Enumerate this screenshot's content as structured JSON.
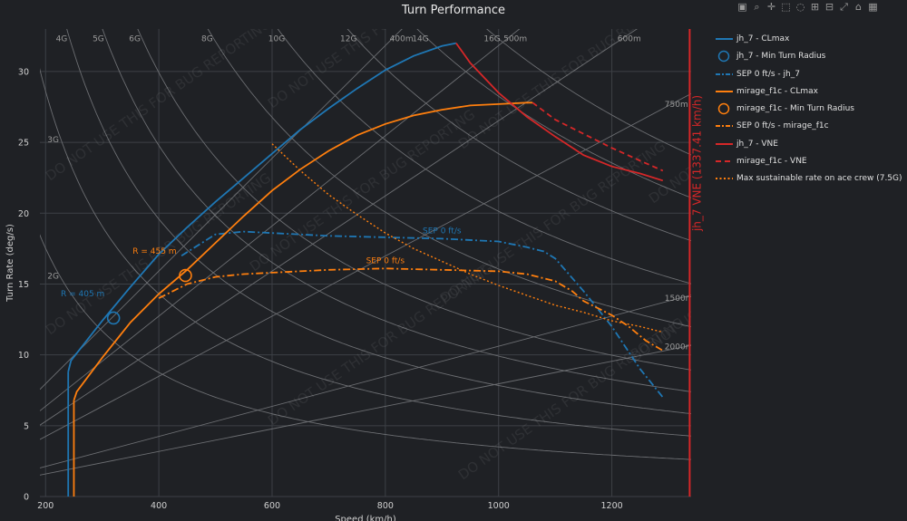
{
  "chart_data": {
    "type": "line",
    "title": "Turn Performance",
    "xlabel": "Speed (km/h)",
    "ylabel": "Turn Rate (deg/s)",
    "xlim": [
      190,
      1340
    ],
    "ylim": [
      0,
      33
    ],
    "x_ticks": [
      200,
      400,
      600,
      800,
      1000,
      1200
    ],
    "y_ticks": [
      0,
      5,
      10,
      15,
      20,
      25,
      30
    ],
    "grid": true,
    "legend_position": "right",
    "watermark": "DO NOT USE THIS FOR BUG REPORTING",
    "g_lines": [
      {
        "label": "2G",
        "g": 2
      },
      {
        "label": "3G",
        "g": 3
      },
      {
        "label": "4G",
        "g": 4
      },
      {
        "label": "5G",
        "g": 5
      },
      {
        "label": "6G",
        "g": 6
      },
      {
        "label": "8G",
        "g": 8
      },
      {
        "label": "10G",
        "g": 10
      },
      {
        "label": "12G",
        "g": 12
      },
      {
        "label": "14G",
        "g": 14
      },
      {
        "label": "16G",
        "g": 16
      }
    ],
    "radius_lines": [
      {
        "label": "400m",
        "r": 400
      },
      {
        "label": "500m",
        "r": 500
      },
      {
        "label": "600m",
        "r": 600
      },
      {
        "label": "750m",
        "r": 750
      },
      {
        "label": "1500m",
        "r": 1500
      },
      {
        "label": "2000m",
        "r": 2000
      }
    ],
    "series": [
      {
        "name": "jh_7 - CLmax",
        "style": "solid",
        "color": "#1f77b4",
        "x": [
          240,
          245,
          300,
          350,
          400,
          450,
          500,
          550,
          600,
          650,
          700,
          750,
          800,
          850,
          900,
          925
        ],
        "y": [
          8.8,
          9.6,
          12.4,
          14.8,
          17.1,
          19.0,
          20.8,
          22.5,
          24.2,
          25.9,
          27.4,
          28.8,
          30.1,
          31.1,
          31.8,
          32.0
        ]
      },
      {
        "name": "jh_7 - Min Turn Radius",
        "type": "marker",
        "color": "#1f77b4",
        "x": [
          320
        ],
        "y": [
          12.6
        ],
        "label": "R = 405 m"
      },
      {
        "name": "SEP 0 ft/s - jh_7",
        "style": "dashdot",
        "color": "#1f77b4",
        "label": "SEP 0 ft/s",
        "x": [
          440,
          500,
          550,
          600,
          700,
          800,
          900,
          1000,
          1050,
          1080,
          1100,
          1150,
          1200,
          1250,
          1290
        ],
        "y": [
          17.0,
          18.5,
          18.7,
          18.6,
          18.4,
          18.3,
          18.2,
          18.0,
          17.6,
          17.3,
          16.8,
          14.5,
          12.0,
          9.0,
          7.0
        ]
      },
      {
        "name": "mirage_f1c - CLmax",
        "style": "solid",
        "color": "#ff7f0e",
        "x": [
          250,
          255,
          300,
          350,
          400,
          450,
          500,
          550,
          600,
          650,
          700,
          750,
          800,
          850,
          900,
          950,
          1000,
          1050,
          1060
        ],
        "y": [
          6.8,
          7.4,
          9.8,
          12.3,
          14.3,
          16.0,
          17.9,
          19.8,
          21.6,
          23.1,
          24.4,
          25.5,
          26.3,
          26.9,
          27.3,
          27.6,
          27.7,
          27.8,
          27.8
        ]
      },
      {
        "name": "mirage_f1c - Min Turn Radius",
        "type": "marker",
        "color": "#ff7f0e",
        "x": [
          447
        ],
        "y": [
          15.6
        ],
        "label": "R = 455 m"
      },
      {
        "name": "SEP 0 ft/s - mirage_f1c",
        "style": "dashdot",
        "color": "#ff7f0e",
        "label": "SEP 0 ft/s",
        "x": [
          400,
          450,
          500,
          550,
          600,
          700,
          800,
          900,
          1000,
          1050,
          1100,
          1130,
          1150,
          1200,
          1230,
          1260,
          1290
        ],
        "y": [
          14.0,
          15.0,
          15.5,
          15.7,
          15.8,
          16.0,
          16.1,
          16.0,
          15.9,
          15.7,
          15.2,
          14.5,
          13.8,
          12.8,
          12.0,
          11.0,
          10.3
        ]
      },
      {
        "name": "jh_7 - VNE",
        "style": "solid",
        "color": "#d62728",
        "x": [
          925,
          950,
          1000,
          1050,
          1100,
          1150,
          1200,
          1250,
          1290
        ],
        "y": [
          32.0,
          30.6,
          28.5,
          26.8,
          25.4,
          24.1,
          23.3,
          22.8,
          22.3
        ]
      },
      {
        "name": "mirage_f1c - VNE",
        "style": "dash",
        "color": "#d62728",
        "x": [
          1060,
          1100,
          1150,
          1200,
          1250,
          1290
        ],
        "y": [
          27.8,
          26.6,
          25.6,
          24.6,
          23.7,
          23.0
        ]
      },
      {
        "name": "Max sustainable rate on ace crew (7.5G)",
        "style": "dot",
        "color": "#ff7f0e",
        "x": [
          600,
          650,
          700,
          750,
          800,
          850,
          900,
          950,
          1000,
          1050,
          1100,
          1150,
          1200,
          1250,
          1290
        ],
        "y": [
          24.9,
          23.0,
          21.3,
          19.9,
          18.6,
          17.5,
          16.6,
          15.7,
          14.9,
          14.2,
          13.5,
          13.0,
          12.4,
          12.0,
          11.6
        ]
      }
    ],
    "vne_line": {
      "x": 1337.41,
      "label": "jh_7 VNE (1337.41 km/h)",
      "color": "#d62728"
    }
  }
}
